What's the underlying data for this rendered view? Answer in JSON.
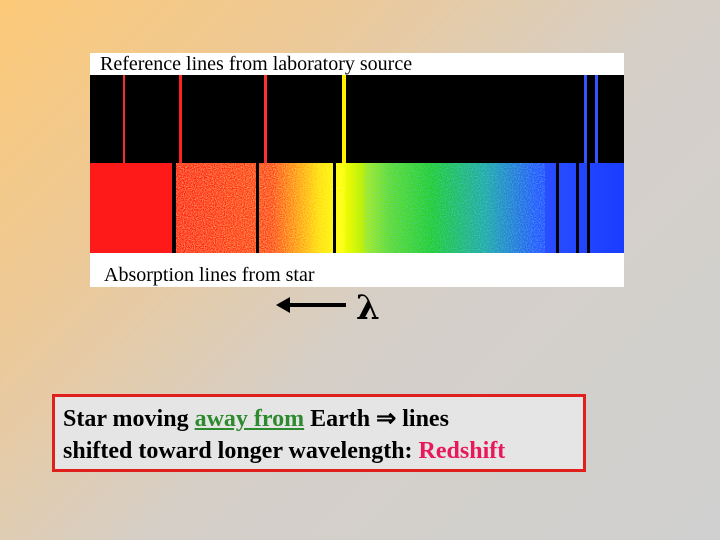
{
  "figure": {
    "reference_caption": "Reference lines from laboratory source",
    "absorption_caption": "Absorption lines from star",
    "reference_spectrum": {
      "background": "#000000",
      "lines": [
        {
          "color": "#ff2a2a"
        },
        {
          "color": "#ff2020"
        },
        {
          "color": "#ff3030"
        },
        {
          "color": "#ffee00"
        },
        {
          "color": "#3355ff"
        },
        {
          "color": "#3355ff"
        }
      ]
    },
    "absorption_spectrum": {
      "colors": [
        "#ff1a1a",
        "#ffff00",
        "#22cc22",
        "#1a3cff"
      ],
      "line_count": 6
    }
  },
  "wavelength_arrow": {
    "symbol": "λ",
    "direction": "left"
  },
  "caption": {
    "part1": "Star moving ",
    "highlight_green": "away from",
    "part2": " Earth ⇒ lines",
    "part3": "shifted toward longer wavelength: ",
    "highlight_red": "Redshift",
    "border_color": "#e0201c",
    "green_color": "#2e8a2e",
    "red_color": "#e8185a"
  }
}
